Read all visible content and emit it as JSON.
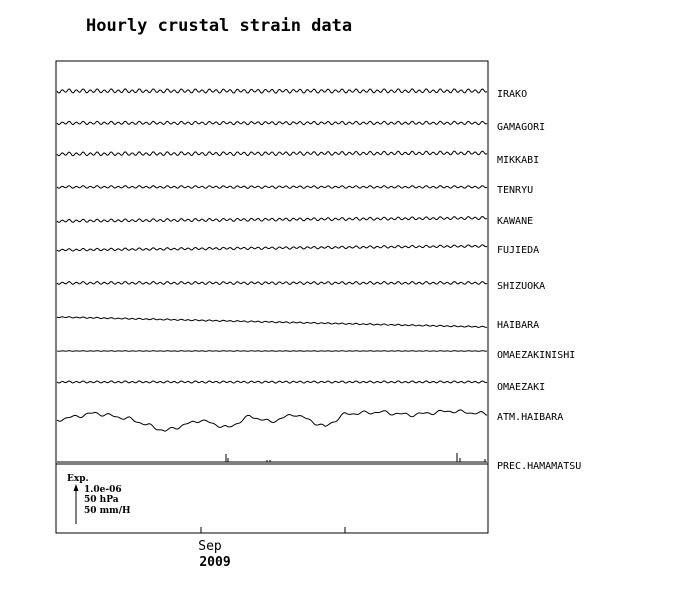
{
  "chart_data": {
    "type": "line",
    "title": "Hourly crustal strain data",
    "xlabel": "",
    "ylabel": "",
    "x_ticks": [
      {
        "label": "Sep",
        "sub": "2009"
      },
      {
        "label": "",
        "sub": ""
      }
    ],
    "scale_legend": {
      "heading": "Exp.",
      "lines": [
        "1.0e-06",
        "50 hPa",
        "50 mm/H"
      ]
    },
    "series": [
      {
        "name": "IRAKO",
        "kind": "tidal",
        "amplitude": 1.6,
        "period": 7,
        "drift": 0
      },
      {
        "name": "GAMAGORI",
        "kind": "tidal",
        "amplitude": 1.3,
        "period": 7,
        "drift": 0
      },
      {
        "name": "MIKKABI",
        "kind": "tidal",
        "amplitude": 1.5,
        "period": 7,
        "drift": -1
      },
      {
        "name": "TENRYU",
        "kind": "tidal",
        "amplitude": 1.0,
        "period": 7,
        "drift": 0
      },
      {
        "name": "KAWANE",
        "kind": "tidal",
        "amplitude": 1.2,
        "period": 7,
        "drift": -3
      },
      {
        "name": "FUJIEDA",
        "kind": "tidal",
        "amplitude": 1.0,
        "period": 7,
        "drift": -4
      },
      {
        "name": "SHIZUOKA",
        "kind": "tidal",
        "amplitude": 1.1,
        "period": 7,
        "drift": 0
      },
      {
        "name": "HAIBARA",
        "kind": "drift",
        "amplitude": 0.5,
        "period": 7,
        "drift": 10
      },
      {
        "name": "OMAEZAKINISHI",
        "kind": "flat",
        "amplitude": 0.2,
        "period": 7,
        "drift": 0
      },
      {
        "name": "OMAEZAKI",
        "kind": "tidal",
        "amplitude": 0.8,
        "period": 7,
        "drift": 0
      },
      {
        "name": "ATM.HAIBARA",
        "kind": "pressure",
        "amplitude": 0,
        "period": 7,
        "drift": 0
      },
      {
        "name": "PREC.HAMAMATSU",
        "kind": "precip",
        "amplitude": 0,
        "period": 7,
        "drift": 0
      }
    ]
  }
}
